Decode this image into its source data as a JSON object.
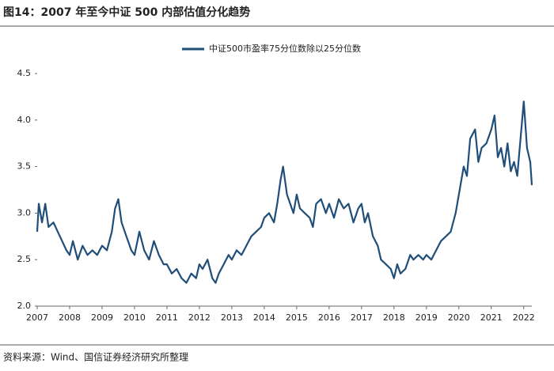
{
  "chart_data": {
    "type": "line",
    "title": "图14：2007 年至今中证 500 内部估值分化趋势",
    "source": "资料来源：Wind、国信证券经济研究所整理",
    "xlim": [
      2007,
      2022.25
    ],
    "xticks": [
      2007,
      2008,
      2009,
      2010,
      2011,
      2012,
      2013,
      2014,
      2015,
      2016,
      2017,
      2018,
      2019,
      2020,
      2021,
      2022
    ],
    "ylim": [
      2.0,
      4.5
    ],
    "yticks": [
      {
        "value": 2.0,
        "label": "2.0"
      },
      2.5,
      {
        "value": 3.0,
        "label": "3.0"
      },
      3.5,
      {
        "value": 4.0,
        "label": "4.0"
      },
      4.5
    ],
    "legend": "top",
    "x": [
      2007.0,
      2007.05,
      2007.15,
      2007.25,
      2007.35,
      2007.5,
      2007.7,
      2007.9,
      2008.0,
      2008.1,
      2008.25,
      2008.4,
      2008.55,
      2008.7,
      2008.85,
      2009.0,
      2009.15,
      2009.3,
      2009.4,
      2009.5,
      2009.6,
      2009.75,
      2009.9,
      2010.0,
      2010.15,
      2010.3,
      2010.45,
      2010.6,
      2010.75,
      2010.9,
      2011.0,
      2011.15,
      2011.3,
      2011.45,
      2011.6,
      2011.75,
      2011.9,
      2012.0,
      2012.1,
      2012.25,
      2012.4,
      2012.5,
      2012.6,
      2012.75,
      2012.9,
      2013.0,
      2013.15,
      2013.3,
      2013.45,
      2013.6,
      2013.75,
      2013.9,
      2014.0,
      2014.15,
      2014.3,
      2014.4,
      2014.5,
      2014.58,
      2014.7,
      2014.8,
      2014.9,
      2015.0,
      2015.1,
      2015.25,
      2015.4,
      2015.5,
      2015.6,
      2015.75,
      2015.9,
      2016.0,
      2016.15,
      2016.3,
      2016.45,
      2016.6,
      2016.75,
      2016.9,
      2017.0,
      2017.1,
      2017.2,
      2017.35,
      2017.5,
      2017.6,
      2017.75,
      2017.9,
      2018.0,
      2018.1,
      2018.2,
      2018.35,
      2018.5,
      2018.6,
      2018.75,
      2018.9,
      2019.0,
      2019.15,
      2019.3,
      2019.45,
      2019.6,
      2019.75,
      2019.9,
      2020.0,
      2020.15,
      2020.25,
      2020.35,
      2020.5,
      2020.6,
      2020.7,
      2020.85,
      2021.0,
      2021.1,
      2021.2,
      2021.3,
      2021.4,
      2021.5,
      2021.6,
      2021.7,
      2021.8,
      2021.9,
      2022.0,
      2022.1,
      2022.2,
      2022.25
    ],
    "series": [
      {
        "name": "中证500市盈率75分位数除以25分位数",
        "color": "#1f4e79",
        "values": [
          2.8,
          3.1,
          2.9,
          3.1,
          2.85,
          2.9,
          2.75,
          2.6,
          2.55,
          2.7,
          2.5,
          2.65,
          2.55,
          2.6,
          2.55,
          2.65,
          2.6,
          2.8,
          3.05,
          3.15,
          2.9,
          2.75,
          2.6,
          2.55,
          2.8,
          2.6,
          2.5,
          2.7,
          2.55,
          2.45,
          2.45,
          2.35,
          2.4,
          2.3,
          2.25,
          2.35,
          2.3,
          2.45,
          2.4,
          2.5,
          2.3,
          2.25,
          2.35,
          2.45,
          2.55,
          2.5,
          2.6,
          2.55,
          2.65,
          2.75,
          2.8,
          2.85,
          2.95,
          3.0,
          2.9,
          3.1,
          3.35,
          3.5,
          3.2,
          3.1,
          3.0,
          3.2,
          3.05,
          3.0,
          2.95,
          2.85,
          3.1,
          3.15,
          3.0,
          3.1,
          2.95,
          3.15,
          3.05,
          3.1,
          2.9,
          3.05,
          3.1,
          2.9,
          3.0,
          2.75,
          2.65,
          2.5,
          2.45,
          2.4,
          2.3,
          2.45,
          2.35,
          2.4,
          2.55,
          2.5,
          2.55,
          2.5,
          2.55,
          2.5,
          2.6,
          2.7,
          2.75,
          2.8,
          3.0,
          3.2,
          3.5,
          3.4,
          3.8,
          3.9,
          3.55,
          3.7,
          3.75,
          3.9,
          4.05,
          3.6,
          3.7,
          3.5,
          3.75,
          3.45,
          3.55,
          3.4,
          3.8,
          4.2,
          3.7,
          3.55,
          3.3
        ]
      }
    ]
  }
}
